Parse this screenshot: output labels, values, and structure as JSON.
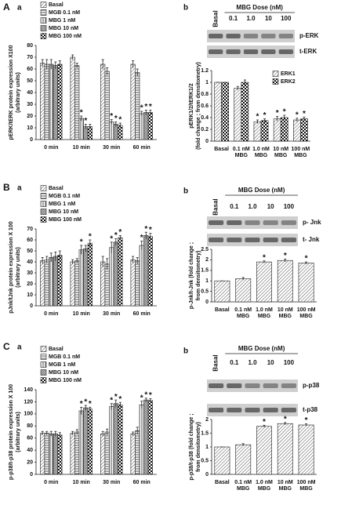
{
  "chart_data": [
    {
      "type": "bar",
      "panel": "A",
      "sub": "a",
      "categories": [
        "0 min",
        "10 min",
        "30 min",
        "60 min"
      ],
      "ylabel": [
        "pERK/tERK protein expression X100",
        "(arbitrary units)"
      ],
      "ylim": [
        0,
        80
      ],
      "yticks": [
        0,
        10,
        20,
        30,
        40,
        50,
        60,
        70,
        80
      ],
      "legend": "upper-left",
      "series": [
        {
          "name": "Basal",
          "pattern": "diagonal",
          "values": [
            65,
            70,
            64,
            64
          ],
          "errors": [
            3,
            2,
            4,
            3
          ],
          "sig": [
            null,
            null,
            null,
            null
          ]
        },
        {
          "name": "MGB 0.1 nM",
          "pattern": "horizontal",
          "values": [
            64,
            63,
            58,
            57
          ],
          "errors": [
            4,
            2,
            3,
            3
          ],
          "sig": [
            null,
            null,
            null,
            null
          ]
        },
        {
          "name": "MBG 1 nM",
          "pattern": "vertical",
          "values": [
            64,
            18,
            15,
            22
          ],
          "errors": [
            4,
            2,
            2,
            2
          ],
          "sig": [
            null,
            "*",
            "*",
            "*"
          ]
        },
        {
          "name": "MBG 10 nM",
          "pattern": "dense",
          "values": [
            63,
            11,
            13,
            23
          ],
          "errors": [
            3,
            2,
            2,
            2
          ],
          "sig": [
            null,
            "*",
            "*",
            "*"
          ]
        },
        {
          "name": "MBG 100 nM",
          "pattern": "checker",
          "values": [
            64,
            11,
            12,
            23
          ],
          "errors": [
            3,
            2,
            2,
            2
          ],
          "sig": [
            null,
            null,
            "*",
            "*"
          ]
        }
      ]
    },
    {
      "type": "bar",
      "sub": "b",
      "blot": {
        "title": "MBG Dose (nM)",
        "lanes": [
          "Basal",
          "0.1",
          "1.0",
          "10",
          "100"
        ],
        "bands": [
          "p-ERK",
          "t-ERK"
        ]
      },
      "categories": [
        "Basal",
        "0.1 nM MBG",
        "1.0 nM MBG",
        "10 nM MBG",
        "100 nM MBG"
      ],
      "ylabel": [
        "pERK1/2/tERK1/2",
        "(fold change ; from densitometry)"
      ],
      "ylim": [
        0,
        1.2
      ],
      "yticks": [
        0,
        0.2,
        0.4,
        0.6,
        0.8,
        1,
        1.2
      ],
      "legend": "upper-right",
      "series": [
        {
          "name": "ERK1",
          "pattern": "diagonal",
          "values": [
            1,
            0.9,
            0.33,
            0.38,
            0.36
          ],
          "errors": [
            0,
            0.03,
            0.03,
            0.04,
            0.03
          ],
          "sig": [
            null,
            null,
            "*",
            "*",
            "*"
          ]
        },
        {
          "name": "ERK2",
          "pattern": "checker",
          "values": [
            1,
            1,
            0.35,
            0.4,
            0.38
          ],
          "errors": [
            0,
            0.04,
            0.03,
            0.04,
            0.03
          ],
          "sig": [
            null,
            null,
            "*",
            "*",
            "*"
          ]
        }
      ]
    },
    {
      "type": "bar",
      "panel": "B",
      "sub": "a",
      "categories": [
        "0 min",
        "10 min",
        "30 min",
        "60 min"
      ],
      "ylabel": [
        "pJnk/tJnk protein expression X 100",
        "(arbitrary units)"
      ],
      "ylim": [
        0,
        70
      ],
      "yticks": [
        0,
        10,
        20,
        30,
        40,
        50,
        60,
        70
      ],
      "legend": "upper-left",
      "series": [
        {
          "name": "Basal",
          "pattern": "diagonal",
          "values": [
            41,
            40,
            40,
            42
          ],
          "errors": [
            3,
            2,
            5,
            3
          ],
          "sig": [
            null,
            null,
            null,
            null
          ]
        },
        {
          "name": "MGB 0.1 nM",
          "pattern": "horizontal",
          "values": [
            42,
            41,
            38,
            41
          ],
          "errors": [
            3,
            2,
            5,
            3
          ],
          "sig": [
            null,
            null,
            null,
            null
          ]
        },
        {
          "name": "MBG 1 nM",
          "pattern": "vertical",
          "values": [
            44,
            51,
            53,
            55
          ],
          "errors": [
            4,
            4,
            5,
            4
          ],
          "sig": [
            null,
            "*",
            "*",
            "*"
          ]
        },
        {
          "name": "MBG 10 nM",
          "pattern": "dense",
          "values": [
            45,
            52,
            58,
            64
          ],
          "errors": [
            4,
            3,
            3,
            3
          ],
          "sig": [
            null,
            null,
            "*",
            "*"
          ]
        },
        {
          "name": "MBG 100 nM",
          "pattern": "checker",
          "values": [
            46,
            57,
            62,
            63
          ],
          "errors": [
            4,
            3,
            2,
            3
          ],
          "sig": [
            null,
            "*",
            "*",
            "*"
          ]
        }
      ]
    },
    {
      "type": "bar",
      "sub": "b",
      "blot": {
        "title": "MBG Dose (nM)",
        "lanes": [
          "Basal",
          "0.1",
          "1.0",
          "10",
          "100"
        ],
        "bands": [
          "p- Jnk",
          "t- Jnk"
        ]
      },
      "categories": [
        "Basal",
        "0.1 nM MBG",
        "1.0 nM MBG",
        "10 nM MBG",
        "100 nM MBG"
      ],
      "ylabel": [
        "p-Jnk/t-Jnk (fold change ;",
        "from densitometry)"
      ],
      "ylim": [
        0,
        2.5
      ],
      "yticks": [
        0,
        0.5,
        1,
        1.5,
        2,
        2.5
      ],
      "pattern": "diagonal",
      "values": [
        1,
        1.1,
        1.9,
        1.97,
        1.85
      ],
      "errors": [
        0,
        0.06,
        0.05,
        0.07,
        0.05
      ],
      "sig": [
        null,
        null,
        "*",
        "*",
        "*"
      ]
    },
    {
      "type": "bar",
      "panel": "C",
      "sub": "a",
      "categories": [
        "0 min",
        "10 min",
        "30 min",
        "60 min"
      ],
      "ylabel": [
        "p-p38/t-p38 protein expression X 100",
        "(arbitrary units)"
      ],
      "ylim": [
        0,
        140
      ],
      "yticks": [
        0,
        20,
        40,
        60,
        80,
        100,
        120,
        140
      ],
      "legend": "upper-left",
      "series": [
        {
          "name": "Basal",
          "pattern": "diagonal",
          "values": [
            68,
            68,
            67,
            67
          ],
          "errors": [
            3,
            3,
            4,
            3
          ],
          "sig": [
            null,
            null,
            null,
            null
          ]
        },
        {
          "name": "MGB 0.1 nM",
          "pattern": "horizontal",
          "values": [
            68,
            70,
            70,
            72
          ],
          "errors": [
            3,
            4,
            5,
            6
          ],
          "sig": [
            null,
            null,
            null,
            null
          ]
        },
        {
          "name": "MGB 1 nM",
          "pattern": "vertical",
          "values": [
            67,
            105,
            112,
            115
          ],
          "errors": [
            4,
            6,
            5,
            6
          ],
          "sig": [
            null,
            "*",
            "*",
            "*"
          ]
        },
        {
          "name": "MBG 10 nM",
          "pattern": "dense",
          "values": [
            67,
            110,
            117,
            123
          ],
          "errors": [
            4,
            4,
            6,
            3
          ],
          "sig": [
            null,
            "*",
            "*",
            "*"
          ]
        },
        {
          "name": "MBG 100 nM",
          "pattern": "checker",
          "values": [
            65,
            108,
            115,
            122
          ],
          "errors": [
            4,
            3,
            4,
            3
          ],
          "sig": [
            null,
            "*",
            "*",
            "*"
          ]
        }
      ]
    },
    {
      "type": "bar",
      "sub": "b",
      "blot": {
        "title": "MBG Dose (nM)",
        "lanes": [
          "Basal",
          "0.1",
          "1.0",
          "10",
          "100"
        ],
        "bands": [
          "p-p38",
          "t-p38"
        ]
      },
      "categories": [
        "Basal",
        "0.1 nM MBG",
        "1.0 nM MBG",
        "10 nM MBG",
        "100 nM MBG"
      ],
      "ylabel": [
        "p-p38/t-p38 (fold change ;",
        "from densitometry)"
      ],
      "ylim": [
        0,
        2
      ],
      "yticks": [
        0,
        0.5,
        1,
        1.5,
        2
      ],
      "pattern": "diagonal",
      "values": [
        1,
        1.08,
        1.75,
        1.85,
        1.8
      ],
      "errors": [
        0,
        0.04,
        0.04,
        0.04,
        0.04
      ],
      "sig": [
        null,
        null,
        "*",
        "*",
        "*"
      ]
    }
  ]
}
